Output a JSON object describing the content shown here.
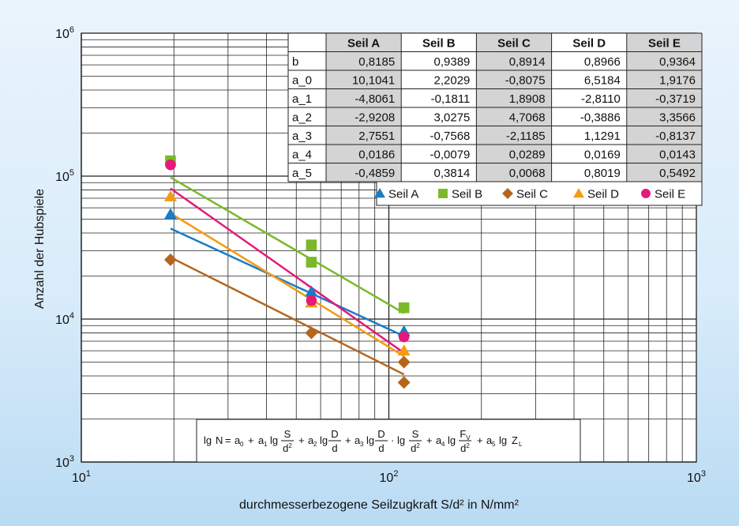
{
  "chart_data": {
    "type": "scatter",
    "xscale": "log",
    "yscale": "log",
    "xlim": [
      10,
      1000
    ],
    "ylim": [
      1000,
      1000000
    ],
    "grid": true,
    "xlabel": "durchmesserbezogene Seilzugkraft S/d² in N/mm²",
    "ylabel": "Anzahl der Hubspiele",
    "x_ticks": [
      {
        "value": 10,
        "base": "10",
        "exp": "1"
      },
      {
        "value": 100,
        "base": "10",
        "exp": "2"
      },
      {
        "value": 1000,
        "base": "10",
        "exp": "3"
      }
    ],
    "y_ticks": [
      {
        "value": 1000,
        "base": "10",
        "exp": "3"
      },
      {
        "value": 10000,
        "base": "10",
        "exp": "4"
      },
      {
        "value": 100000,
        "base": "10",
        "exp": "5"
      },
      {
        "value": 1000000,
        "base": "10",
        "exp": "6"
      }
    ],
    "legend_position": "top-right",
    "series": [
      {
        "name": "Seil A",
        "color": "#1a7cc4",
        "marker": "triangle",
        "points": [
          [
            19.5,
            54000
          ],
          [
            56,
            15500
          ],
          [
            112,
            8200
          ]
        ],
        "fit": [
          [
            19.5,
            43000
          ],
          [
            112,
            7600
          ]
        ]
      },
      {
        "name": "Seil B",
        "color": "#7ab929",
        "marker": "square",
        "points": [
          [
            19.5,
            128000
          ],
          [
            56,
            33000
          ],
          [
            56,
            25000
          ],
          [
            112,
            12000
          ]
        ],
        "fit": [
          [
            19.5,
            98000
          ],
          [
            112,
            11000
          ]
        ]
      },
      {
        "name": "Seil C",
        "color": "#b5651d",
        "marker": "diamond",
        "points": [
          [
            19.5,
            26000
          ],
          [
            56,
            8000
          ],
          [
            112,
            5000
          ],
          [
            112,
            3600
          ]
        ],
        "fit": [
          [
            19.5,
            27000
          ],
          [
            112,
            4100
          ]
        ]
      },
      {
        "name": "Seil D",
        "color": "#f39c12",
        "marker": "triangle",
        "points": [
          [
            19.5,
            72000
          ],
          [
            56,
            13000
          ],
          [
            112,
            6000
          ]
        ],
        "fit": [
          [
            19.5,
            55000
          ],
          [
            112,
            5500
          ]
        ]
      },
      {
        "name": "Seil E",
        "color": "#e5197a",
        "marker": "circle",
        "points": [
          [
            19.5,
            120000
          ],
          [
            56,
            13500
          ],
          [
            112,
            7500
          ]
        ],
        "fit": [
          [
            19.5,
            82000
          ],
          [
            112,
            5800
          ]
        ]
      }
    ],
    "coefficient_table": {
      "columns": [
        "",
        "Seil A",
        "Seil B",
        "Seil C",
        "Seil D",
        "Seil E"
      ],
      "rows": [
        [
          "b",
          "0,8185",
          "0,9389",
          "0,8914",
          "0,8966",
          "0,9364"
        ],
        [
          "a_0",
          "10,1041",
          "2,2029",
          "-0,8075",
          "6,5184",
          "1,9176"
        ],
        [
          "a_1",
          "-4,8061",
          "-0,1811",
          "1,8908",
          "-2,8110",
          "-0,3719"
        ],
        [
          "a_2",
          "-2,9208",
          "3,0275",
          "4,7068",
          "-0,3886",
          "3,3566"
        ],
        [
          "a_3",
          "2,7551",
          "-0,7568",
          "-2,1185",
          "1,1291",
          "-0,8137"
        ],
        [
          "a_4",
          "0,0186",
          "-0,0079",
          "0,0289",
          "0,0169",
          "0,0143"
        ],
        [
          "a_5",
          "-0,4859",
          "0,3814",
          "0,0068",
          "0,8019",
          "0,5492"
        ]
      ]
    },
    "formula": {
      "lg": "lg",
      "N": "N",
      "eq": "=",
      "plus": "+",
      "dot": "·",
      "a0": "a",
      "sub0": "0",
      "a1": "a",
      "sub1": "1",
      "a2": "a",
      "sub2": "2",
      "a3": "a",
      "sub3": "3",
      "a4": "a",
      "sub4": "4",
      "a5": "a",
      "sub5": "5",
      "S": "S",
      "d2": "d",
      "sq": "2",
      "D": "D",
      "d": "d",
      "F": "F",
      "Fsub": "V",
      "Z": "Z",
      "Zsub": "L"
    }
  }
}
